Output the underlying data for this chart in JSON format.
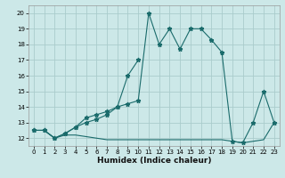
{
  "title": "",
  "xlabel": "Humidex (Indice chaleur)",
  "x": [
    0,
    1,
    2,
    3,
    4,
    5,
    6,
    7,
    8,
    9,
    10,
    11,
    12,
    13,
    14,
    15,
    16,
    17,
    18,
    19,
    20,
    21,
    22,
    23
  ],
  "line1": [
    12.5,
    12.5,
    12.0,
    12.3,
    12.7,
    13.3,
    13.5,
    13.7,
    14.0,
    14.2,
    14.4,
    20.0,
    18.0,
    19.0,
    17.7,
    19.0,
    19.0,
    18.3,
    17.5,
    11.8,
    11.7,
    13.0,
    15.0,
    13.0
  ],
  "line2": [
    12.5,
    12.5,
    12.0,
    12.3,
    12.7,
    13.0,
    13.2,
    13.5,
    14.0,
    16.0,
    17.0,
    null,
    null,
    null,
    null,
    null,
    null,
    null,
    null,
    null,
    null,
    null,
    null,
    null
  ],
  "line3": [
    12.5,
    12.5,
    12.0,
    12.2,
    12.2,
    12.1,
    12.0,
    11.9,
    11.9,
    11.9,
    11.9,
    11.9,
    11.9,
    11.9,
    11.9,
    11.9,
    11.9,
    11.9,
    11.9,
    11.8,
    11.7,
    11.8,
    11.9,
    13.0
  ],
  "bg_color": "#cce8e8",
  "grid_color": "#aacccc",
  "line_color": "#1a6b6b",
  "ylim": [
    11.5,
    20.5
  ],
  "xlim": [
    -0.5,
    23.5
  ],
  "yticks": [
    12,
    13,
    14,
    15,
    16,
    17,
    18,
    19,
    20
  ],
  "xticks": [
    0,
    1,
    2,
    3,
    4,
    5,
    6,
    7,
    8,
    9,
    10,
    11,
    12,
    13,
    14,
    15,
    16,
    17,
    18,
    19,
    20,
    21,
    22,
    23
  ],
  "tick_fontsize": 5.0,
  "xlabel_fontsize": 6.5
}
